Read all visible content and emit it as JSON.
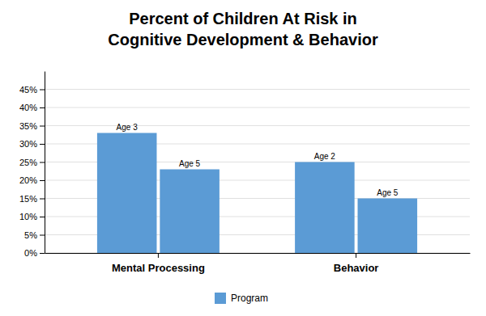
{
  "chart_data": {
    "type": "bar",
    "title": "Percent of Children At Risk in\nCognitive Development & Behavior",
    "categories": [
      "Mental Processing",
      "Behavior"
    ],
    "series": [
      {
        "name": "Program",
        "color": "#5B9BD5",
        "values": [
          0.33,
          0.25
        ],
        "annotations": [
          "Age 3",
          "Age 2"
        ]
      },
      {
        "color": "#5B9BD5",
        "values": [
          0.23,
          0.15
        ],
        "annotations": [
          "Age 5",
          "Age 5"
        ]
      }
    ],
    "ylim": [
      0,
      0.5
    ],
    "yticks": [
      {
        "value": 0.0,
        "label": "0%"
      },
      {
        "value": 0.05,
        "label": "5%"
      },
      {
        "value": 0.1,
        "label": "10%"
      },
      {
        "value": 0.15,
        "label": "15%"
      },
      {
        "value": 0.2,
        "label": "20%"
      },
      {
        "value": 0.25,
        "label": "25%"
      },
      {
        "value": 0.3,
        "label": "30%"
      },
      {
        "value": 0.35,
        "label": "35%"
      },
      {
        "value": 0.4,
        "label": "40%"
      },
      {
        "value": 0.45,
        "label": "45%"
      }
    ],
    "grid": true,
    "legend": "bottom"
  }
}
